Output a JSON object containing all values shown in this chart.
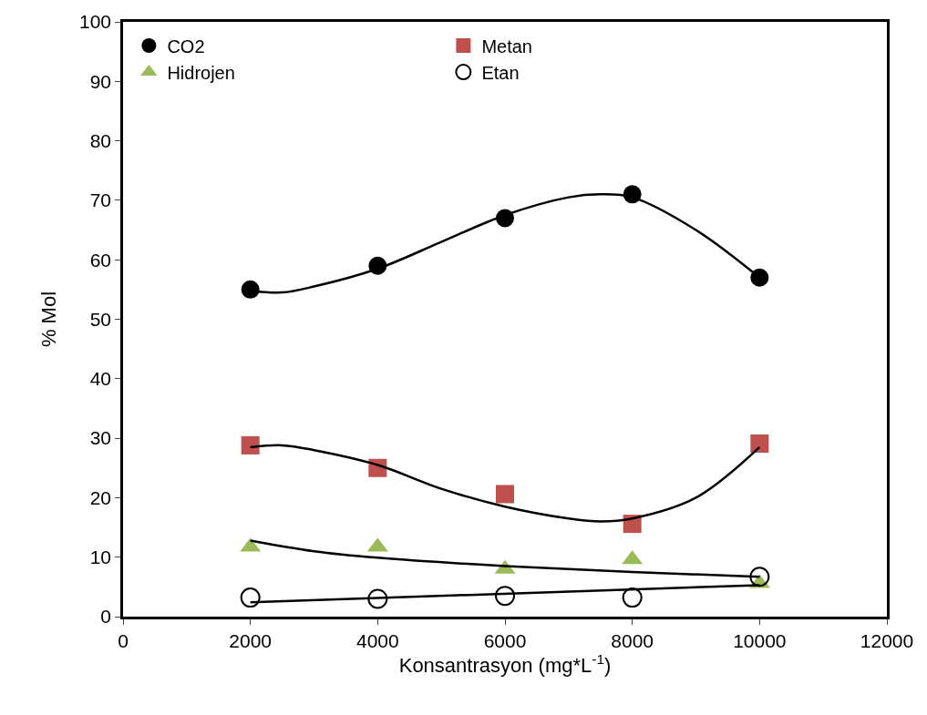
{
  "chart_data": {
    "type": "scatter",
    "xlabel": "Konsantrasyon (mg*L$^{-1}$)",
    "ylabel": "% Mol",
    "x": [
      2000,
      4000,
      6000,
      8000,
      10000
    ],
    "xlim": [
      0,
      12000
    ],
    "xticks": [
      0,
      2000,
      4000,
      6000,
      8000,
      10000,
      12000
    ],
    "ylim": [
      0,
      100
    ],
    "yticks": [
      0,
      10,
      20,
      30,
      40,
      50,
      60,
      70,
      80,
      90,
      100
    ],
    "grid": false,
    "legend": "top left",
    "series": [
      {
        "name": "CO2",
        "color": "#000000",
        "marker": "circle",
        "values": [
          55,
          59,
          67,
          71,
          57
        ]
      },
      {
        "name": "Metan",
        "color": "#c0504d",
        "marker": "square",
        "values": [
          28.8,
          25,
          20.6,
          15.6,
          29.1
        ]
      },
      {
        "name": "Hidrojen",
        "color": "#9bbb59",
        "marker": "triangle",
        "values": [
          11.7,
          11.7,
          8,
          9.6,
          5.6
        ]
      },
      {
        "name": "Etan",
        "color": "#000000",
        "marker": "circle-open",
        "values": [
          3.2,
          3,
          3.5,
          3.2,
          6.7
        ]
      },
      {
        "type": "line",
        "color": "#000000",
        "x": [
          2000,
          2500,
          3000,
          4000,
          5000,
          6000,
          7000,
          7500,
          8000,
          9000,
          10000
        ],
        "values": [
          54.8,
          54.5,
          55.5,
          58.5,
          63,
          67.5,
          70.5,
          71,
          70.5,
          65,
          57
        ]
      },
      {
        "type": "line",
        "color": "#000000",
        "x": [
          2000,
          2500,
          3000,
          4000,
          5000,
          6000,
          7000,
          7500,
          8000,
          9000,
          10000
        ],
        "values": [
          28.5,
          28.8,
          28,
          25.5,
          21.5,
          18.5,
          16.5,
          16,
          16.5,
          20,
          28.5
        ]
      },
      {
        "type": "line",
        "color": "#000000",
        "x": [
          2000,
          3000,
          4000,
          6000,
          8000,
          10000
        ],
        "values": [
          12.8,
          11,
          9.9,
          8.5,
          7.5,
          6.7
        ]
      },
      {
        "type": "line",
        "color": "#000000",
        "x": [
          2000,
          10000
        ],
        "values": [
          2.4,
          5.3
        ]
      }
    ]
  }
}
